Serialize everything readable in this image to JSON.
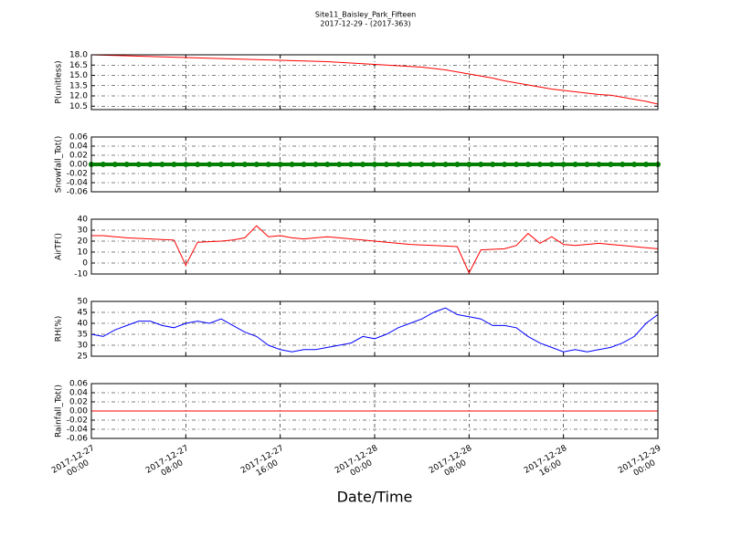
{
  "chart_data": {
    "type": "line",
    "title": "Site11_Baisley_Park_Fifteen",
    "subtitle": "2017-12-29 - (2017-363)",
    "xlabel": "Date/Time",
    "grid": true,
    "x": [
      "2017-12-27 00:00",
      "2017-12-27 01:00",
      "2017-12-27 02:00",
      "2017-12-27 03:00",
      "2017-12-27 04:00",
      "2017-12-27 05:00",
      "2017-12-27 06:00",
      "2017-12-27 07:00",
      "2017-12-27 08:00",
      "2017-12-27 09:00",
      "2017-12-27 10:00",
      "2017-12-27 11:00",
      "2017-12-27 12:00",
      "2017-12-27 13:00",
      "2017-12-27 14:00",
      "2017-12-27 15:00",
      "2017-12-27 16:00",
      "2017-12-27 17:00",
      "2017-12-27 18:00",
      "2017-12-27 19:00",
      "2017-12-27 20:00",
      "2017-12-27 21:00",
      "2017-12-27 22:00",
      "2017-12-27 23:00",
      "2017-12-28 00:00",
      "2017-12-28 01:00",
      "2017-12-28 02:00",
      "2017-12-28 03:00",
      "2017-12-28 04:00",
      "2017-12-28 05:00",
      "2017-12-28 06:00",
      "2017-12-28 07:00",
      "2017-12-28 08:00",
      "2017-12-28 09:00",
      "2017-12-28 10:00",
      "2017-12-28 11:00",
      "2017-12-28 12:00",
      "2017-12-28 13:00",
      "2017-12-28 14:00",
      "2017-12-28 15:00",
      "2017-12-28 16:00",
      "2017-12-28 17:00",
      "2017-12-28 18:00",
      "2017-12-28 19:00",
      "2017-12-28 20:00",
      "2017-12-28 21:00",
      "2017-12-28 22:00",
      "2017-12-28 23:00",
      "2017-12-29 00:00"
    ],
    "xlim": [
      "2017-12-27 00:00",
      "2017-12-29 00:00"
    ],
    "xticks": [
      {
        "value": "2017-12-27 00:00",
        "label": "2017-12-27\n00:00"
      },
      {
        "value": "2017-12-27 08:00",
        "label": "2017-12-27\n08:00"
      },
      {
        "value": "2017-12-27 16:00",
        "label": "2017-12-27\n16:00"
      },
      {
        "value": "2017-12-28 00:00",
        "label": "2017-12-28\n00:00"
      },
      {
        "value": "2017-12-28 08:00",
        "label": "2017-12-28\n08:00"
      },
      {
        "value": "2017-12-28 16:00",
        "label": "2017-12-28\n16:00"
      },
      {
        "value": "2017-12-29 00:00",
        "label": "2017-12-29\n00:00"
      }
    ],
    "panels": [
      {
        "ylabel": "P(unitless)",
        "ylim": [
          10,
          18
        ],
        "yticks": [
          10.5,
          {
            "value": 12,
            "label": "12.0"
          },
          13.5,
          {
            "value": 15,
            "label": "15.0"
          },
          16.5,
          {
            "value": 18,
            "label": "18.0"
          }
        ],
        "series": [
          {
            "color": "#ff0000",
            "marker": false,
            "values": [
              18.0,
              17.95,
              17.9,
              17.85,
              17.8,
              17.75,
              17.7,
              17.65,
              17.6,
              17.55,
              17.5,
              17.45,
              17.4,
              17.35,
              17.3,
              17.25,
              17.2,
              17.15,
              17.1,
              17.05,
              17.0,
              16.9,
              16.8,
              16.7,
              16.6,
              16.5,
              16.4,
              16.3,
              16.2,
              16.0,
              15.8,
              15.5,
              15.2,
              14.9,
              14.6,
              14.2,
              13.9,
              13.6,
              13.3,
              13.0,
              12.8,
              12.6,
              12.4,
              12.2,
              12.1,
              11.8,
              11.5,
              11.2,
              10.8
            ]
          }
        ]
      },
      {
        "ylabel": "Snowfall_Tot()",
        "ylim": [
          -0.06,
          0.06
        ],
        "yticks": [
          -0.06,
          -0.04,
          -0.02,
          {
            "value": 0,
            "label": "0.00"
          },
          0.02,
          0.04,
          0.06
        ],
        "series": [
          {
            "color": "#008000",
            "marker": true,
            "values": [
              0,
              0,
              0,
              0,
              0,
              0,
              0,
              0,
              0,
              0,
              0,
              0,
              0,
              0,
              0,
              0,
              0,
              0,
              0,
              0,
              0,
              0,
              0,
              0,
              0,
              0,
              0,
              0,
              0,
              0,
              0,
              0,
              0,
              0,
              0,
              0,
              0,
              0,
              0,
              0,
              0,
              0,
              0,
              0,
              0,
              0,
              0,
              0,
              0
            ]
          }
        ]
      },
      {
        "ylabel": "AirTF()",
        "ylim": [
          -10,
          40
        ],
        "yticks": [
          -10,
          0,
          10,
          20,
          30,
          40
        ],
        "series": [
          {
            "color": "#ff0000",
            "marker": false,
            "values": [
              25,
              25,
              24,
              23,
              22.5,
              22,
              21.5,
              21,
              -2,
              19,
              19.5,
              20,
              21,
              23,
              34,
              24,
              25,
              23,
              22,
              23,
              24,
              23,
              22,
              21,
              20,
              19,
              18,
              17,
              16.5,
              16,
              15.5,
              15,
              -9,
              12,
              12.5,
              13,
              16,
              27,
              18,
              24,
              17,
              16,
              17,
              18,
              17,
              16,
              15,
              14,
              13
            ]
          }
        ]
      },
      {
        "ylabel": "RH(%)",
        "ylim": [
          25,
          50
        ],
        "yticks": [
          25,
          30,
          35,
          40,
          45,
          50
        ],
        "series": [
          {
            "color": "#0000ff",
            "marker": false,
            "values": [
              35,
              34,
              37,
              39,
              41,
              41,
              39,
              38,
              40,
              41,
              40,
              42,
              39,
              36,
              34,
              30,
              28,
              27,
              28,
              28,
              29,
              30,
              31,
              34,
              33,
              35,
              38,
              40,
              42,
              45,
              47,
              44,
              43,
              42,
              39,
              39,
              38,
              34,
              31,
              29,
              27,
              28,
              27,
              28,
              29,
              31,
              34,
              40,
              44
            ]
          }
        ]
      },
      {
        "ylabel": "Rainfall_Tot()",
        "ylim": [
          -0.06,
          0.06
        ],
        "yticks": [
          -0.06,
          -0.04,
          -0.02,
          {
            "value": 0,
            "label": "0.00"
          },
          0.02,
          0.04,
          0.06
        ],
        "series": [
          {
            "color": "#ff0000",
            "marker": false,
            "values": [
              0,
              0,
              0,
              0,
              0,
              0,
              0,
              0,
              0,
              0,
              0,
              0,
              0,
              0,
              0,
              0,
              0,
              0,
              0,
              0,
              0,
              0,
              0,
              0,
              0,
              0,
              0,
              0,
              0,
              0,
              0,
              0,
              0,
              0,
              0,
              0,
              0,
              0,
              0,
              0,
              0,
              0,
              0,
              0,
              0,
              0,
              0,
              0,
              0
            ]
          }
        ]
      }
    ]
  }
}
